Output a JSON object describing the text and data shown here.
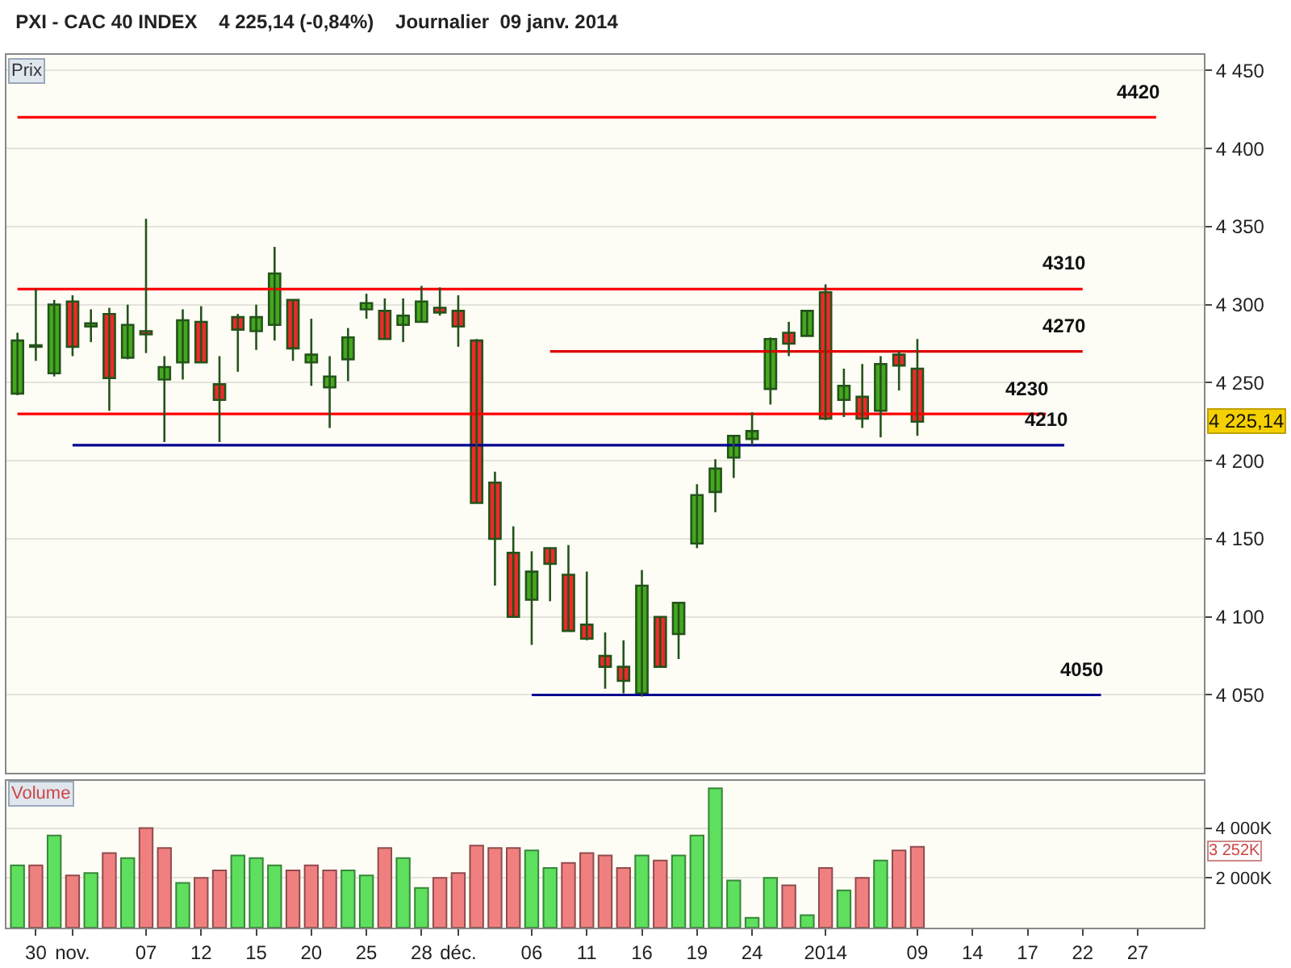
{
  "chart_data": [
    {
      "type": "candlestick",
      "title": "PXI - CAC 40 INDEX    4 225,14 (-0,84%)    Journalier  09 janv. 2014",
      "categories": [
        null,
        null,
        null,
        null,
        null,
        null,
        null,
        null,
        null,
        null,
        null,
        null,
        null,
        null,
        null,
        null,
        null,
        null,
        null,
        null,
        null,
        null,
        null,
        null,
        null,
        null,
        null,
        null,
        null,
        null,
        null,
        null,
        null,
        null,
        null,
        null,
        null,
        null,
        null,
        null,
        null,
        null,
        null,
        null,
        null,
        null,
        null,
        null,
        null,
        null,
        null,
        null,
        null,
        null,
        null,
        null,
        null,
        null,
        null,
        null,
        null,
        null,
        null,
        null,
        null
      ],
      "ohlc": [
        [
          4243,
          4282,
          4242,
          4277
        ],
        [
          4274,
          4310,
          4264,
          4273
        ],
        [
          4256,
          4303,
          4254,
          4300
        ],
        [
          4302,
          4306,
          4267,
          4273
        ],
        [
          4286,
          4297,
          4276,
          4288
        ],
        [
          4294,
          4298,
          4232,
          4253
        ],
        [
          4266,
          4300,
          4265,
          4287
        ],
        [
          4283,
          4355,
          4269,
          4281
        ],
        [
          4252,
          4267,
          4212,
          4260
        ],
        [
          4263,
          4297,
          4252,
          4290
        ],
        [
          4289,
          4299,
          4263,
          4263
        ],
        [
          4249,
          4267,
          4212,
          4239
        ],
        [
          4292,
          4294,
          4257,
          4284
        ],
        [
          4283,
          4300,
          4271,
          4292
        ],
        [
          4287,
          4337,
          4277,
          4320
        ],
        [
          4303,
          4303,
          4264,
          4272
        ],
        [
          4263,
          4291,
          4248,
          4268
        ],
        [
          4247,
          4267,
          4221,
          4254
        ],
        [
          4265,
          4285,
          4251,
          4279
        ],
        [
          4297,
          4307,
          4291,
          4301
        ],
        [
          4296,
          4304,
          4278,
          4278
        ],
        [
          4287,
          4304,
          4276,
          4293
        ],
        [
          4289,
          4312,
          4289,
          4302
        ],
        [
          4298,
          4311,
          4293,
          4295
        ],
        [
          4296,
          4306,
          4273,
          4286
        ],
        [
          4277,
          4278,
          4173,
          4173
        ],
        [
          4186,
          4193,
          4120,
          4150
        ],
        [
          4141,
          4158,
          4100,
          4100
        ],
        [
          4111,
          4142,
          4082,
          4129
        ],
        [
          4144,
          4144,
          4110,
          4134
        ],
        [
          4127,
          4146,
          4091,
          4091
        ],
        [
          4095,
          4129,
          4085,
          4086
        ],
        [
          4075,
          4090,
          4054,
          4068
        ],
        [
          4068,
          4085,
          4051,
          4059
        ],
        [
          4051,
          4130,
          4049,
          4120
        ],
        [
          4100,
          4100,
          4068,
          4068
        ],
        [
          4089,
          4109,
          4073,
          4109
        ],
        [
          4147,
          4185,
          4144,
          4178
        ],
        [
          4180,
          4201,
          4167,
          4195
        ],
        [
          4202,
          4216,
          4189,
          4216
        ],
        [
          4214,
          4231,
          4210,
          4219
        ],
        [
          4246,
          4279,
          4236,
          4278
        ],
        [
          4282,
          4289,
          4267,
          4275
        ],
        [
          4280,
          4296,
          4280,
          4296
        ],
        [
          4308,
          4313,
          4226,
          4227
        ],
        [
          4239,
          4259,
          4228,
          4248
        ],
        [
          4241,
          4262,
          4221,
          4227
        ],
        [
          4232,
          4267,
          4215,
          4262
        ],
        [
          4268,
          4270,
          4245,
          4261
        ],
        [
          4259,
          4278,
          4216,
          4225
        ],
        null,
        null,
        null,
        null,
        null,
        null,
        null,
        null,
        null,
        null,
        null,
        null,
        null,
        null,
        null
      ],
      "colors": [
        "#44a81e",
        "#ee2a2a",
        "#44a81e",
        "#ee2a2a",
        "#44a81e",
        "#ee2a2a",
        "#44a81e",
        "#ee2a2a",
        "#44a81e",
        "#44a81e",
        "#ee2a2a",
        "#ee2a2a",
        "#ee2a2a",
        "#44a81e",
        "#44a81e",
        "#ee2a2a",
        "#44a81e",
        "#44a81e",
        "#44a81e",
        "#44a81e",
        "#ee2a2a",
        "#44a81e",
        "#44a81e",
        "#ee2a2a",
        "#ee2a2a",
        "#ee2a2a",
        "#ee2a2a",
        "#ee2a2a",
        "#44a81e",
        "#ee2a2a",
        "#ee2a2a",
        "#ee2a2a",
        "#ee2a2a",
        "#ee2a2a",
        "#44a81e",
        "#ee2a2a",
        "#44a81e",
        "#44a81e",
        "#44a81e",
        "#44a81e",
        "#44a81e",
        "#44a81e",
        "#ee2a2a",
        "#44a81e",
        "#ee2a2a",
        "#44a81e",
        "#ee2a2a",
        "#44a81e",
        "#ee2a2a",
        "#ee2a2a",
        null,
        null,
        null,
        null,
        null,
        null,
        null,
        null,
        null,
        null,
        null,
        null,
        null,
        null,
        null
      ],
      "color": "#24531a",
      "series": [
        {
          "type": "line",
          "color": "#ff0000",
          "values": [
            4420,
            4420,
            4420,
            4420,
            4420,
            4420,
            4420,
            4420,
            4420,
            4420,
            4420,
            4420,
            4420,
            4420,
            4420,
            4420,
            4420,
            4420,
            4420,
            4420,
            4420,
            4420,
            4420,
            4420,
            4420,
            4420,
            4420,
            4420,
            4420,
            4420,
            4420,
            4420,
            4420,
            4420,
            4420,
            4420,
            4420,
            4420,
            4420,
            4420,
            4420,
            4420,
            4420,
            4420,
            4420,
            4420,
            4420,
            4420,
            4420,
            4420,
            4420,
            4420,
            4420,
            4420,
            4420,
            4420,
            4420,
            4420,
            4420,
            4420,
            4420,
            4420,
            4420,
            null,
            null
          ]
        },
        {
          "type": "line",
          "color": "#ff0000",
          "values": [
            4310,
            4310,
            4310,
            4310,
            4310,
            4310,
            4310,
            4310,
            4310,
            4310,
            4310,
            4310,
            4310,
            4310,
            4310,
            4310,
            4310,
            4310,
            4310,
            4310,
            4310,
            4310,
            4310,
            4310,
            4310,
            4310,
            4310,
            4310,
            4310,
            4310,
            4310,
            4310,
            4310,
            4310,
            4310,
            4310,
            4310,
            4310,
            4310,
            4310,
            4310,
            4310,
            4310,
            4310,
            4310,
            4310,
            4310,
            4310,
            4310,
            4310,
            4310,
            4310,
            4310,
            4310,
            4310,
            4310,
            4310,
            4310,
            4310,
            null,
            null,
            null,
            null,
            null,
            null
          ]
        },
        {
          "type": "line",
          "color": "#e00000",
          "values": [
            null,
            null,
            null,
            null,
            null,
            null,
            null,
            null,
            null,
            null,
            null,
            null,
            null,
            null,
            null,
            null,
            null,
            null,
            null,
            null,
            null,
            null,
            null,
            null,
            null,
            null,
            null,
            null,
            null,
            4270,
            4270,
            4270,
            4270,
            4270,
            4270,
            4270,
            4270,
            4270,
            4270,
            4270,
            4270,
            4270,
            4270,
            4270,
            4270,
            4270,
            4270,
            4270,
            4270,
            4270,
            4270,
            4270,
            4270,
            4270,
            4270,
            4270,
            4270,
            4270,
            4270,
            null,
            null,
            null,
            null,
            null,
            null
          ]
        },
        {
          "type": "line",
          "color": "#ff0000",
          "values": [
            4230,
            4230,
            4230,
            4230,
            4230,
            4230,
            4230,
            4230,
            4230,
            4230,
            4230,
            4230,
            4230,
            4230,
            4230,
            4230,
            4230,
            4230,
            4230,
            4230,
            4230,
            4230,
            4230,
            4230,
            4230,
            4230,
            4230,
            4230,
            4230,
            4230,
            4230,
            4230,
            4230,
            4230,
            4230,
            4230,
            4230,
            4230,
            4230,
            4230,
            4230,
            4230,
            4230,
            4230,
            4230,
            4230,
            4230,
            4230,
            4230,
            4230,
            4230,
            4230,
            4230,
            4230,
            4230,
            4230,
            4230,
            null,
            null,
            null,
            null,
            null,
            null,
            null,
            null
          ]
        },
        {
          "type": "line",
          "color": "#000090",
          "values": [
            null,
            null,
            null,
            4210,
            4210,
            4210,
            4210,
            4210,
            4210,
            4210,
            4210,
            4210,
            4210,
            4210,
            4210,
            4210,
            4210,
            4210,
            4210,
            4210,
            4210,
            4210,
            4210,
            4210,
            4210,
            4210,
            4210,
            4210,
            4210,
            4210,
            4210,
            4210,
            4210,
            4210,
            4210,
            4210,
            4210,
            4210,
            4210,
            4210,
            4210,
            4210,
            4210,
            4210,
            4210,
            4210,
            4210,
            4210,
            4210,
            4210,
            4210,
            4210,
            4210,
            4210,
            4210,
            4210,
            4210,
            4210,
            null,
            null,
            null,
            null,
            null,
            null,
            null
          ]
        },
        {
          "type": "line",
          "color": "#000090",
          "values": [
            null,
            null,
            null,
            null,
            null,
            null,
            null,
            null,
            null,
            null,
            null,
            null,
            null,
            null,
            null,
            null,
            null,
            null,
            null,
            null,
            null,
            null,
            null,
            null,
            null,
            null,
            null,
            null,
            4050,
            4050,
            4050,
            4050,
            4050,
            4050,
            4050,
            4050,
            4050,
            4050,
            4050,
            4050,
            4050,
            4050,
            4050,
            4050,
            4050,
            4050,
            4050,
            4050,
            4050,
            4050,
            4050,
            4050,
            4050,
            4050,
            4050,
            4050,
            4050,
            4050,
            4050,
            4050,
            null,
            null,
            null,
            null,
            null
          ]
        }
      ],
      "ylim": [
        4000,
        4460
      ],
      "yticks": [
        {
          "value": 4050,
          "label": "4 050"
        },
        {
          "value": 4100,
          "label": "4 100"
        },
        {
          "value": 4150,
          "label": "4 150"
        },
        {
          "value": 4200,
          "label": "4 200"
        },
        {
          "value": 4250,
          "label": "4 250"
        },
        {
          "value": 4300,
          "label": "4 300"
        },
        {
          "value": 4350,
          "label": "4 350"
        },
        {
          "value": 4400,
          "label": "4 400"
        },
        {
          "value": 4450,
          "label": "4 450"
        }
      ],
      "grid": "y",
      "tick_labels": "y",
      "annotations": [
        "Prix",
        "4420",
        "4310",
        "4270",
        "4230",
        "4210",
        "4050",
        "4 225,14"
      ]
    },
    {
      "type": "bar",
      "categories": [
        null,
        "30",
        null,
        "nov.",
        null,
        null,
        null,
        "07",
        null,
        null,
        "12",
        null,
        null,
        "15",
        null,
        null,
        "20",
        null,
        null,
        "25",
        null,
        null,
        "28",
        null,
        "déc.",
        null,
        null,
        null,
        "06",
        null,
        null,
        "11",
        null,
        null,
        "16",
        null,
        null,
        "19",
        null,
        null,
        "24",
        null,
        null,
        null,
        "2014",
        null,
        null,
        null,
        null,
        "09",
        null,
        null,
        "14",
        null,
        null,
        "17",
        null,
        null,
        "22",
        null,
        null,
        "27",
        null,
        null,
        null
      ],
      "values": [
        2500,
        2500,
        3700,
        2100,
        2200,
        3000,
        2800,
        4000,
        3200,
        1800,
        2000,
        2300,
        2900,
        2800,
        2500,
        2300,
        2500,
        2300,
        2300,
        2100,
        3200,
        2800,
        1600,
        2000,
        2200,
        3300,
        3200,
        3200,
        3100,
        2400,
        2600,
        3000,
        2900,
        2400,
        2900,
        2700,
        2900,
        3700,
        5600,
        1900,
        400,
        2000,
        1700,
        500,
        2400,
        1500,
        2000,
        2700,
        3100,
        3252,
        null,
        null,
        null,
        null,
        null,
        null,
        null,
        null,
        null,
        null,
        null,
        null,
        null,
        null,
        null
      ],
      "colors": [
        "#5ee05e",
        "#f08080",
        "#5ee05e",
        "#f08080",
        "#5ee05e",
        "#f08080",
        "#5ee05e",
        "#f08080",
        "#f08080",
        "#5ee05e",
        "#f08080",
        "#f08080",
        "#5ee05e",
        "#5ee05e",
        "#5ee05e",
        "#f08080",
        "#f08080",
        "#f08080",
        "#5ee05e",
        "#5ee05e",
        "#f08080",
        "#5ee05e",
        "#5ee05e",
        "#f08080",
        "#f08080",
        "#f08080",
        "#f08080",
        "#f08080",
        "#5ee05e",
        "#5ee05e",
        "#f08080",
        "#f08080",
        "#f08080",
        "#f08080",
        "#5ee05e",
        "#f08080",
        "#5ee05e",
        "#5ee05e",
        "#5ee05e",
        "#5ee05e",
        "#5ee05e",
        "#5ee05e",
        "#f08080",
        "#5ee05e",
        "#f08080",
        "#5ee05e",
        "#f08080",
        "#5ee05e",
        "#f08080",
        "#f08080",
        null,
        null,
        null,
        null,
        null,
        null,
        null,
        null,
        null,
        null,
        null,
        null,
        null,
        null,
        null
      ],
      "ylim": [
        0,
        5900
      ],
      "yticks": [
        {
          "value": 2000,
          "label": "2 000K"
        },
        {
          "value": 4000,
          "label": "4 000K"
        }
      ],
      "grid": "y",
      "annotations": [
        "Volume",
        "3 252K"
      ]
    }
  ]
}
